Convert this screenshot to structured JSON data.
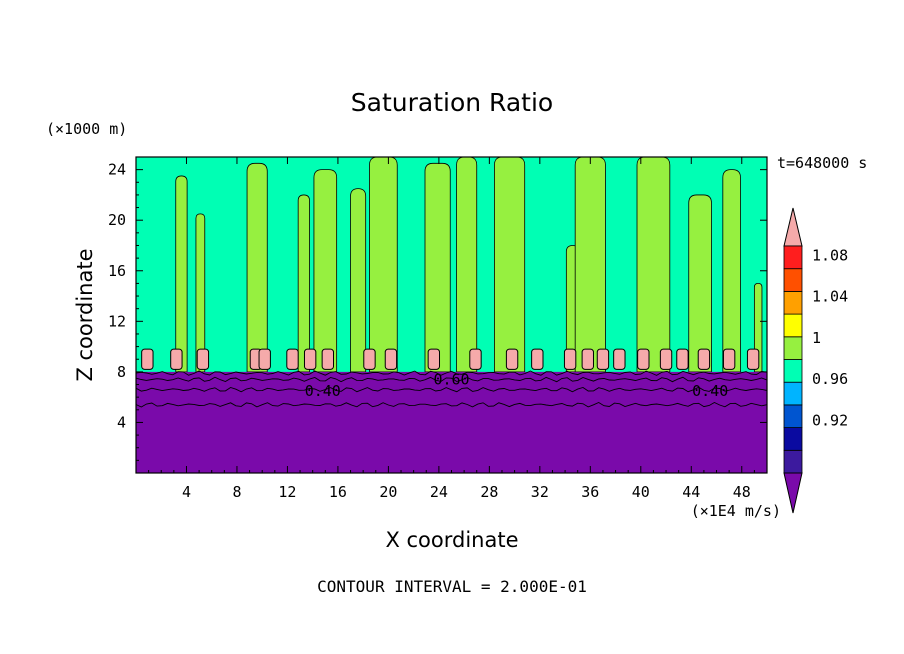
{
  "chart_data": {
    "type": "heatmap",
    "title": "Saturation Ratio",
    "xlabel": "X coordinate",
    "ylabel": "Z coordinate",
    "x_unit": "(×1E4 m/s)",
    "y_unit": "(×1000 m)",
    "time_label": "t=648000 s",
    "footer": "CONTOUR INTERVAL = 2.000E-01",
    "xlim": [
      0,
      50
    ],
    "ylim": [
      0,
      25
    ],
    "x_ticks": [
      "4",
      "8",
      "12",
      "16",
      "20",
      "24",
      "28",
      "32",
      "36",
      "40",
      "44",
      "48"
    ],
    "y_ticks": [
      "4",
      "8",
      "12",
      "16",
      "20",
      "24"
    ],
    "contour_labels": [
      {
        "text": "0.40",
        "x": 14.8,
        "y": 6.5
      },
      {
        "text": "0.60",
        "x": 25.0,
        "y": 7.4
      },
      {
        "text": "0.40",
        "x": 45.5,
        "y": 6.5
      }
    ],
    "colorbar": {
      "levels": [
        0.88,
        0.9,
        0.92,
        0.94,
        0.96,
        0.98,
        1.0,
        1.02,
        1.04,
        1.06,
        1.08,
        1.1
      ],
      "colors": [
        "#3c1a9e",
        "#0a0aa0",
        "#0055d0",
        "#00b4ff",
        "#00ffb4",
        "#96f040",
        "#ffff00",
        "#ffa000",
        "#ff5000",
        "#ff1e1e"
      ],
      "under_color": "#7a0aaa",
      "over_color": "#f5aaaa",
      "tick_labels": [
        "0.92",
        "0.96",
        "1",
        "1.04",
        "1.08"
      ],
      "tick_values": [
        0.92,
        0.96,
        1.0,
        1.04,
        1.08
      ]
    },
    "regions": {
      "lower_layer_top": 8,
      "lower_layer_color": "#7a0aaa",
      "background_color": "#00ffb4",
      "plume_color": "#96f040",
      "cap_color": "#f5aaaa",
      "plumes": [
        {
          "x": 3.6,
          "w": 0.9,
          "top": 23.5
        },
        {
          "x": 5.1,
          "w": 0.7,
          "top": 20.5
        },
        {
          "x": 9.6,
          "w": 1.6,
          "top": 24.5
        },
        {
          "x": 13.3,
          "w": 0.9,
          "top": 22.0
        },
        {
          "x": 15.0,
          "w": 1.8,
          "top": 24.0
        },
        {
          "x": 17.6,
          "w": 1.2,
          "top": 22.5
        },
        {
          "x": 19.6,
          "w": 2.2,
          "top": 25.0
        },
        {
          "x": 23.9,
          "w": 2.0,
          "top": 24.5
        },
        {
          "x": 26.2,
          "w": 1.6,
          "top": 25.0
        },
        {
          "x": 29.6,
          "w": 2.4,
          "top": 25.0
        },
        {
          "x": 34.6,
          "w": 1.0,
          "top": 18.0
        },
        {
          "x": 36.0,
          "w": 2.4,
          "top": 25.0
        },
        {
          "x": 41.0,
          "w": 2.6,
          "top": 25.0
        },
        {
          "x": 44.7,
          "w": 1.8,
          "top": 22.0
        },
        {
          "x": 47.2,
          "w": 1.4,
          "top": 24.0
        },
        {
          "x": 49.3,
          "w": 0.6,
          "top": 15.0
        }
      ],
      "caps": [
        0.9,
        3.2,
        5.3,
        9.5,
        10.2,
        12.4,
        13.8,
        15.2,
        18.5,
        20.2,
        23.6,
        26.9,
        29.8,
        31.8,
        34.4,
        35.8,
        37.0,
        38.3,
        40.2,
        42.0,
        43.3,
        45.0,
        47.0,
        48.9
      ]
    }
  }
}
